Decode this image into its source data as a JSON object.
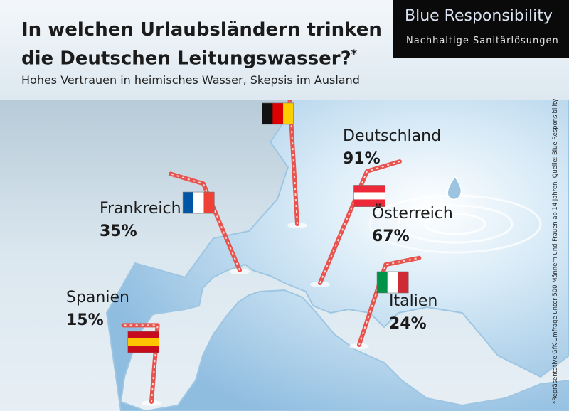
{
  "header": {
    "title_line1": "In welchen Urlaubsländern trinken",
    "title_line2": "die Deutschen Leitungswasser?",
    "title_mark": "*",
    "subtitle": "Hohes Vertrauen in heimisches Wasser, Skepsis im Ausland"
  },
  "brand": {
    "name": "Blue Responsibility",
    "tagline": "Nachhaltige Sanitärlösungen"
  },
  "footnote": "*Repräsentative GfK-Umfrage unter 500 Männern und Frauen ab 14 Jahren. Quelle: Blue Responsibility",
  "chart_data": {
    "type": "bar",
    "categories": [
      "Deutschland",
      "Frankreich",
      "Österreich",
      "Spanien",
      "Italien"
    ],
    "values": [
      91,
      35,
      67,
      15,
      24
    ],
    "value_labels": [
      "91%",
      "35%",
      "67%",
      "15%",
      "24%"
    ],
    "unit": "%",
    "flags": [
      {
        "country": "Deutschland",
        "colors": [
          "#111111",
          "#dd0000",
          "#ffce00"
        ]
      },
      {
        "country": "Frankreich",
        "colors": [
          "#0055a4",
          "#ffffff",
          "#ef4135"
        ]
      },
      {
        "country": "Österreich",
        "colors": [
          "#ed2939",
          "#ffffff",
          "#ed2939"
        ]
      },
      {
        "country": "Spanien",
        "colors": [
          "#c60b1e",
          "#ffc400",
          "#c60b1e"
        ]
      },
      {
        "country": "Italien",
        "colors": [
          "#009246",
          "#ffffff",
          "#ce2b37"
        ]
      }
    ]
  },
  "colors": {
    "straw": "#e8534d",
    "water": "#bcd9ee"
  }
}
